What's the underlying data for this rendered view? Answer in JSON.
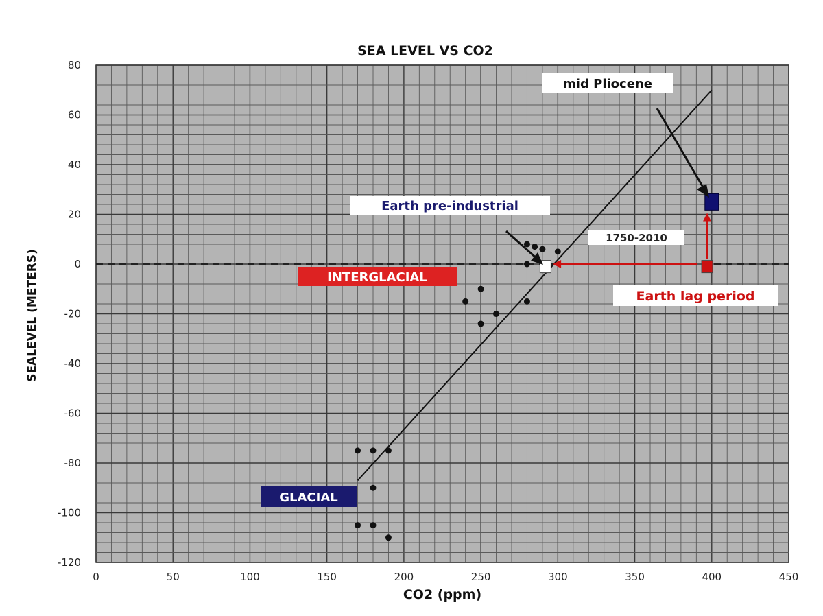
{
  "chart_data": {
    "type": "scatter",
    "title": "SEA LEVEL VS CO2",
    "xlabel": "CO2 (ppm)",
    "ylabel": "SEALEVEL (METERS)",
    "xlim": [
      0,
      450
    ],
    "ylim": [
      -120,
      80
    ],
    "x_ticks": [
      0,
      50,
      100,
      150,
      200,
      250,
      300,
      350,
      400,
      450
    ],
    "y_ticks": [
      80,
      60,
      40,
      20,
      0,
      -20,
      -40,
      -60,
      -80,
      -100,
      -120
    ],
    "grid": true,
    "plot_background": "#b4b4b4",
    "series": [
      {
        "points": [
          {
            "x": 170,
            "y": -75
          },
          {
            "x": 180,
            "y": -75
          },
          {
            "x": 190,
            "y": -75
          },
          {
            "x": 180,
            "y": -90
          },
          {
            "x": 170,
            "y": -105
          },
          {
            "x": 180,
            "y": -105
          },
          {
            "x": 190,
            "y": -110
          },
          {
            "x": 240,
            "y": -15
          },
          {
            "x": 250,
            "y": -10
          },
          {
            "x": 250,
            "y": -24
          },
          {
            "x": 260,
            "y": -20
          },
          {
            "x": 280,
            "y": -15
          },
          {
            "x": 280,
            "y": 8
          },
          {
            "x": 285,
            "y": 7
          },
          {
            "x": 290,
            "y": 6
          },
          {
            "x": 300,
            "y": 5
          },
          {
            "x": 280,
            "y": 0
          }
        ]
      }
    ],
    "trendline": {
      "x1": 170,
      "y1": -87,
      "x2": 400,
      "y2": 70
    },
    "reference_line": {
      "y": 0,
      "style": "dashed"
    },
    "markers": [
      {
        "name": "pre-industrial",
        "x": 292,
        "y": -1,
        "color": "#ffffff"
      },
      {
        "name": "current",
        "x": 397,
        "y": -1,
        "color": "#cc1111"
      },
      {
        "name": "mid-pliocene",
        "x": 400,
        "y": 25,
        "color": "#101070"
      }
    ],
    "lag_arrow": {
      "x_from": 295,
      "x_to": 397,
      "y": 0,
      "y_top": 20,
      "color": "#cc1111"
    },
    "annotations": {
      "mid_pliocene": "mid Pliocene",
      "pre_industrial": "Earth pre-industrial",
      "period": "1750-2010",
      "interglacial": "INTERGLACIAL",
      "glacial": "GLACIAL",
      "lag": "Earth lag period"
    },
    "colors": {
      "interglacial_bg": "#dd2222",
      "glacial_bg": "#1a1a6e",
      "pre_industrial_text": "#1a1a6e",
      "lag_text": "#cc1111"
    }
  }
}
